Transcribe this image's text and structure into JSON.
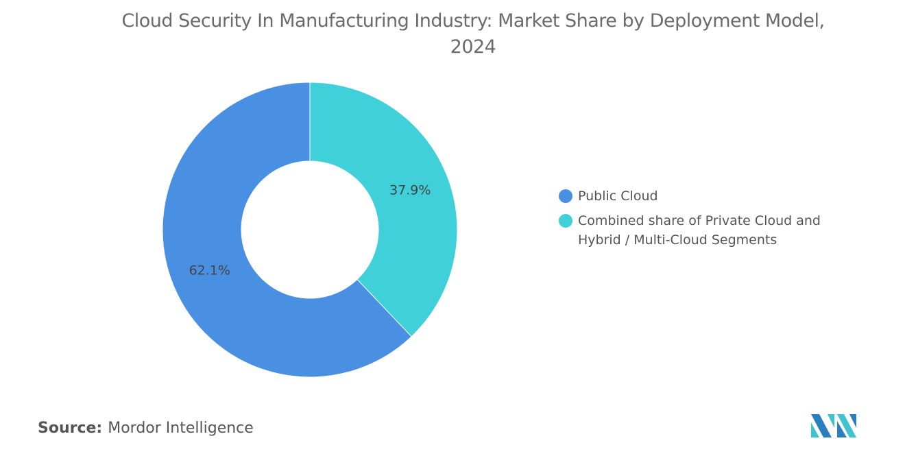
{
  "chart_data": {
    "type": "pie",
    "variant": "donut",
    "title": "Cloud Security In Manufacturing Industry: Market Share by Deployment Model, 2024",
    "categories": [
      "Public Cloud",
      "Combined share of Private Cloud and Hybrid / Multi-Cloud Segments"
    ],
    "values": [
      62.1,
      37.9
    ],
    "data_labels": [
      "62.1%",
      "37.9%"
    ],
    "colors": [
      "#4a90e2",
      "#3fd0da"
    ],
    "legend_placement": "right"
  },
  "source": {
    "label": "Source:",
    "value": "Mordor Intelligence"
  },
  "logo": {
    "text": "Mordor Intelligence",
    "colors": [
      "#2a7fc0",
      "#3fc4cf"
    ]
  }
}
